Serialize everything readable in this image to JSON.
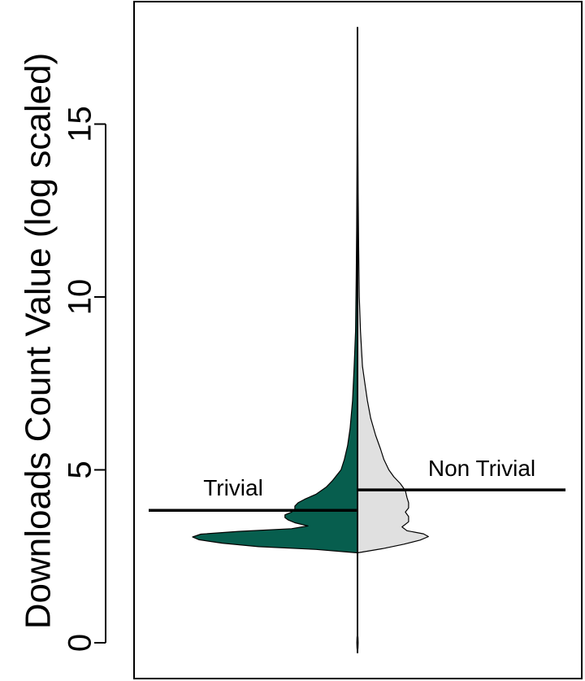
{
  "chart_data": {
    "type": "violin",
    "ylabel": "Downloads Count Value (log scaled)",
    "ylim": [
      -0.4,
      18.5
    ],
    "yticks": [
      0,
      5,
      10,
      15
    ],
    "yticklabels": [
      "0",
      "5",
      "10",
      "15"
    ],
    "series": [
      {
        "name": "Trivial",
        "side": "left",
        "color": "#075E4E",
        "median": 3.83,
        "density": [
          [
            2.6,
            0.0
          ],
          [
            2.7,
            0.25
          ],
          [
            2.78,
            0.6
          ],
          [
            2.88,
            0.82
          ],
          [
            2.98,
            0.96
          ],
          [
            3.06,
            1.0
          ],
          [
            3.14,
            0.95
          ],
          [
            3.22,
            0.72
          ],
          [
            3.3,
            0.4
          ],
          [
            3.38,
            0.3
          ],
          [
            3.47,
            0.38
          ],
          [
            3.55,
            0.42
          ],
          [
            3.62,
            0.44
          ],
          [
            3.7,
            0.44
          ],
          [
            3.78,
            0.4
          ],
          [
            3.86,
            0.38
          ],
          [
            3.95,
            0.38
          ],
          [
            4.05,
            0.36
          ],
          [
            4.15,
            0.32
          ],
          [
            4.3,
            0.25
          ],
          [
            4.5,
            0.19
          ],
          [
            4.7,
            0.15
          ],
          [
            5.0,
            0.1
          ],
          [
            5.3,
            0.08
          ],
          [
            5.7,
            0.06
          ],
          [
            6.2,
            0.045
          ],
          [
            7.0,
            0.03
          ],
          [
            8.0,
            0.02
          ],
          [
            9.0,
            0.012
          ],
          [
            10.5,
            0.008
          ],
          [
            12.0,
            0.005
          ],
          [
            14.0,
            0.003
          ],
          [
            16.0,
            0.002
          ],
          [
            17.8,
            0.0
          ]
        ]
      },
      {
        "name": "Non Trivial",
        "side": "right",
        "color": "#E0E0E0",
        "median": 4.42,
        "density": [
          [
            2.6,
            0.0
          ],
          [
            2.72,
            0.15
          ],
          [
            2.85,
            0.28
          ],
          [
            2.97,
            0.38
          ],
          [
            3.07,
            0.43
          ],
          [
            3.15,
            0.4
          ],
          [
            3.24,
            0.3
          ],
          [
            3.35,
            0.27
          ],
          [
            3.5,
            0.31
          ],
          [
            3.65,
            0.31
          ],
          [
            3.78,
            0.29
          ],
          [
            3.9,
            0.31
          ],
          [
            4.05,
            0.31
          ],
          [
            4.2,
            0.3
          ],
          [
            4.4,
            0.29
          ],
          [
            4.6,
            0.26
          ],
          [
            4.8,
            0.22
          ],
          [
            5.0,
            0.19
          ],
          [
            5.3,
            0.16
          ],
          [
            5.6,
            0.14
          ],
          [
            6.0,
            0.11
          ],
          [
            6.5,
            0.08
          ],
          [
            7.0,
            0.06
          ],
          [
            7.5,
            0.045
          ],
          [
            8.0,
            0.03
          ],
          [
            9.0,
            0.018
          ],
          [
            10.0,
            0.011
          ],
          [
            11.5,
            0.007
          ],
          [
            13.0,
            0.004
          ],
          [
            15.0,
            0.002
          ],
          [
            17.8,
            0.0
          ]
        ]
      }
    ],
    "tail": [
      [
        -0.3,
        0.0
      ],
      [
        -0.15,
        0.003
      ],
      [
        0.0,
        0.004
      ],
      [
        0.15,
        0.003
      ],
      [
        0.3,
        0.0
      ],
      [
        2.6,
        0.0
      ]
    ],
    "annotations": [
      {
        "text": "Trivial",
        "x_side": "left"
      },
      {
        "text": "Non Trivial",
        "x_side": "right"
      }
    ],
    "grid": false,
    "legend": "none"
  }
}
